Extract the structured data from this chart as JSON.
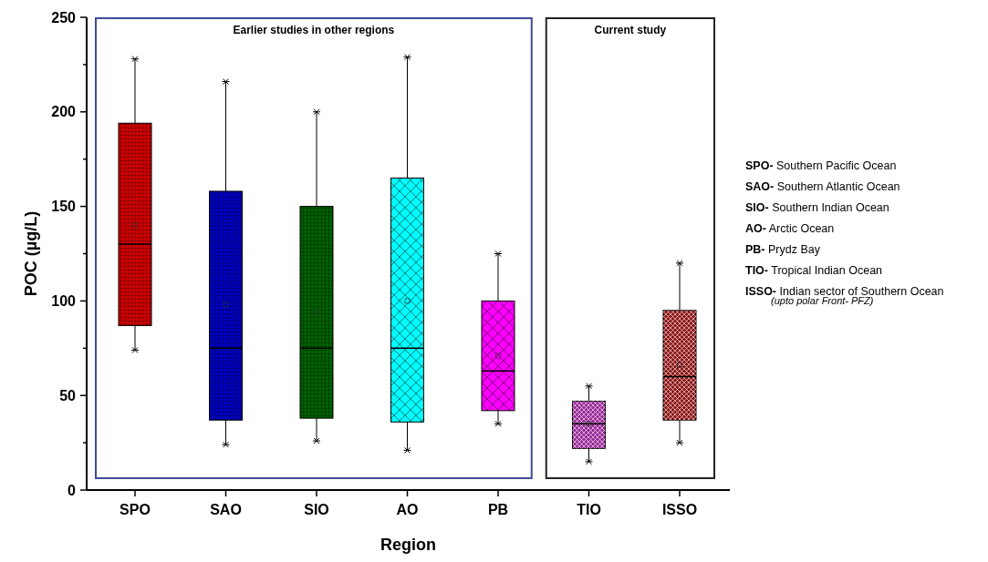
{
  "chart_data": {
    "type": "box",
    "categories": [
      "SPO",
      "SAO",
      "SIO",
      "AO",
      "PB",
      "TIO",
      "ISSO"
    ],
    "boxes": [
      {
        "low": 74,
        "q1": 87,
        "median": 130,
        "q3": 194,
        "high": 228,
        "mean": 140
      },
      {
        "low": 24,
        "q1": 37,
        "median": 75,
        "q3": 158,
        "high": 216,
        "mean": 98
      },
      {
        "low": 26,
        "q1": 38,
        "median": 75,
        "q3": 150,
        "high": 200,
        "mean": 94
      },
      {
        "low": 21,
        "q1": 36,
        "median": 75,
        "q3": 165,
        "high": 229,
        "mean": 100
      },
      {
        "low": 35,
        "q1": 42,
        "median": 63,
        "q3": 100,
        "high": 125,
        "mean": 71
      },
      {
        "low": 15,
        "q1": 22,
        "median": 35,
        "q3": 47,
        "high": 55,
        "mean": 35
      },
      {
        "low": 25,
        "q1": 37,
        "median": 60,
        "q3": 95,
        "high": 120,
        "mean": 66
      }
    ],
    "colors": [
      "#d00000",
      "#0000c0",
      "#006000",
      "#00ffff",
      "#ff00ff",
      "#9a2a9a",
      "#8e1616"
    ],
    "xlabel": "Region",
    "ylabel": "POC (µg/L)",
    "ylim": [
      0,
      250
    ],
    "yticks": [
      0,
      {
        "value": 25,
        "label": null
      },
      50,
      {
        "value": 75,
        "label": null
      },
      100,
      {
        "value": 125,
        "label": null
      },
      150,
      {
        "value": 175,
        "label": null
      },
      200,
      {
        "value": 225,
        "label": null
      },
      250
    ],
    "annotations": [
      "Earlier studies in other regions",
      "Current study",
      "SPO- Southern Pacific Ocean",
      "SAO- Southern Atlantic Ocean",
      "SIO- Southern Indian Ocean",
      "AO- Arctic Ocean",
      "PB- Prydz Bay",
      "TIO- Tropical Indian Ocean",
      "ISSO- Indian sector of Southern Ocean",
      "(upto polar Front- PFZ)"
    ]
  }
}
